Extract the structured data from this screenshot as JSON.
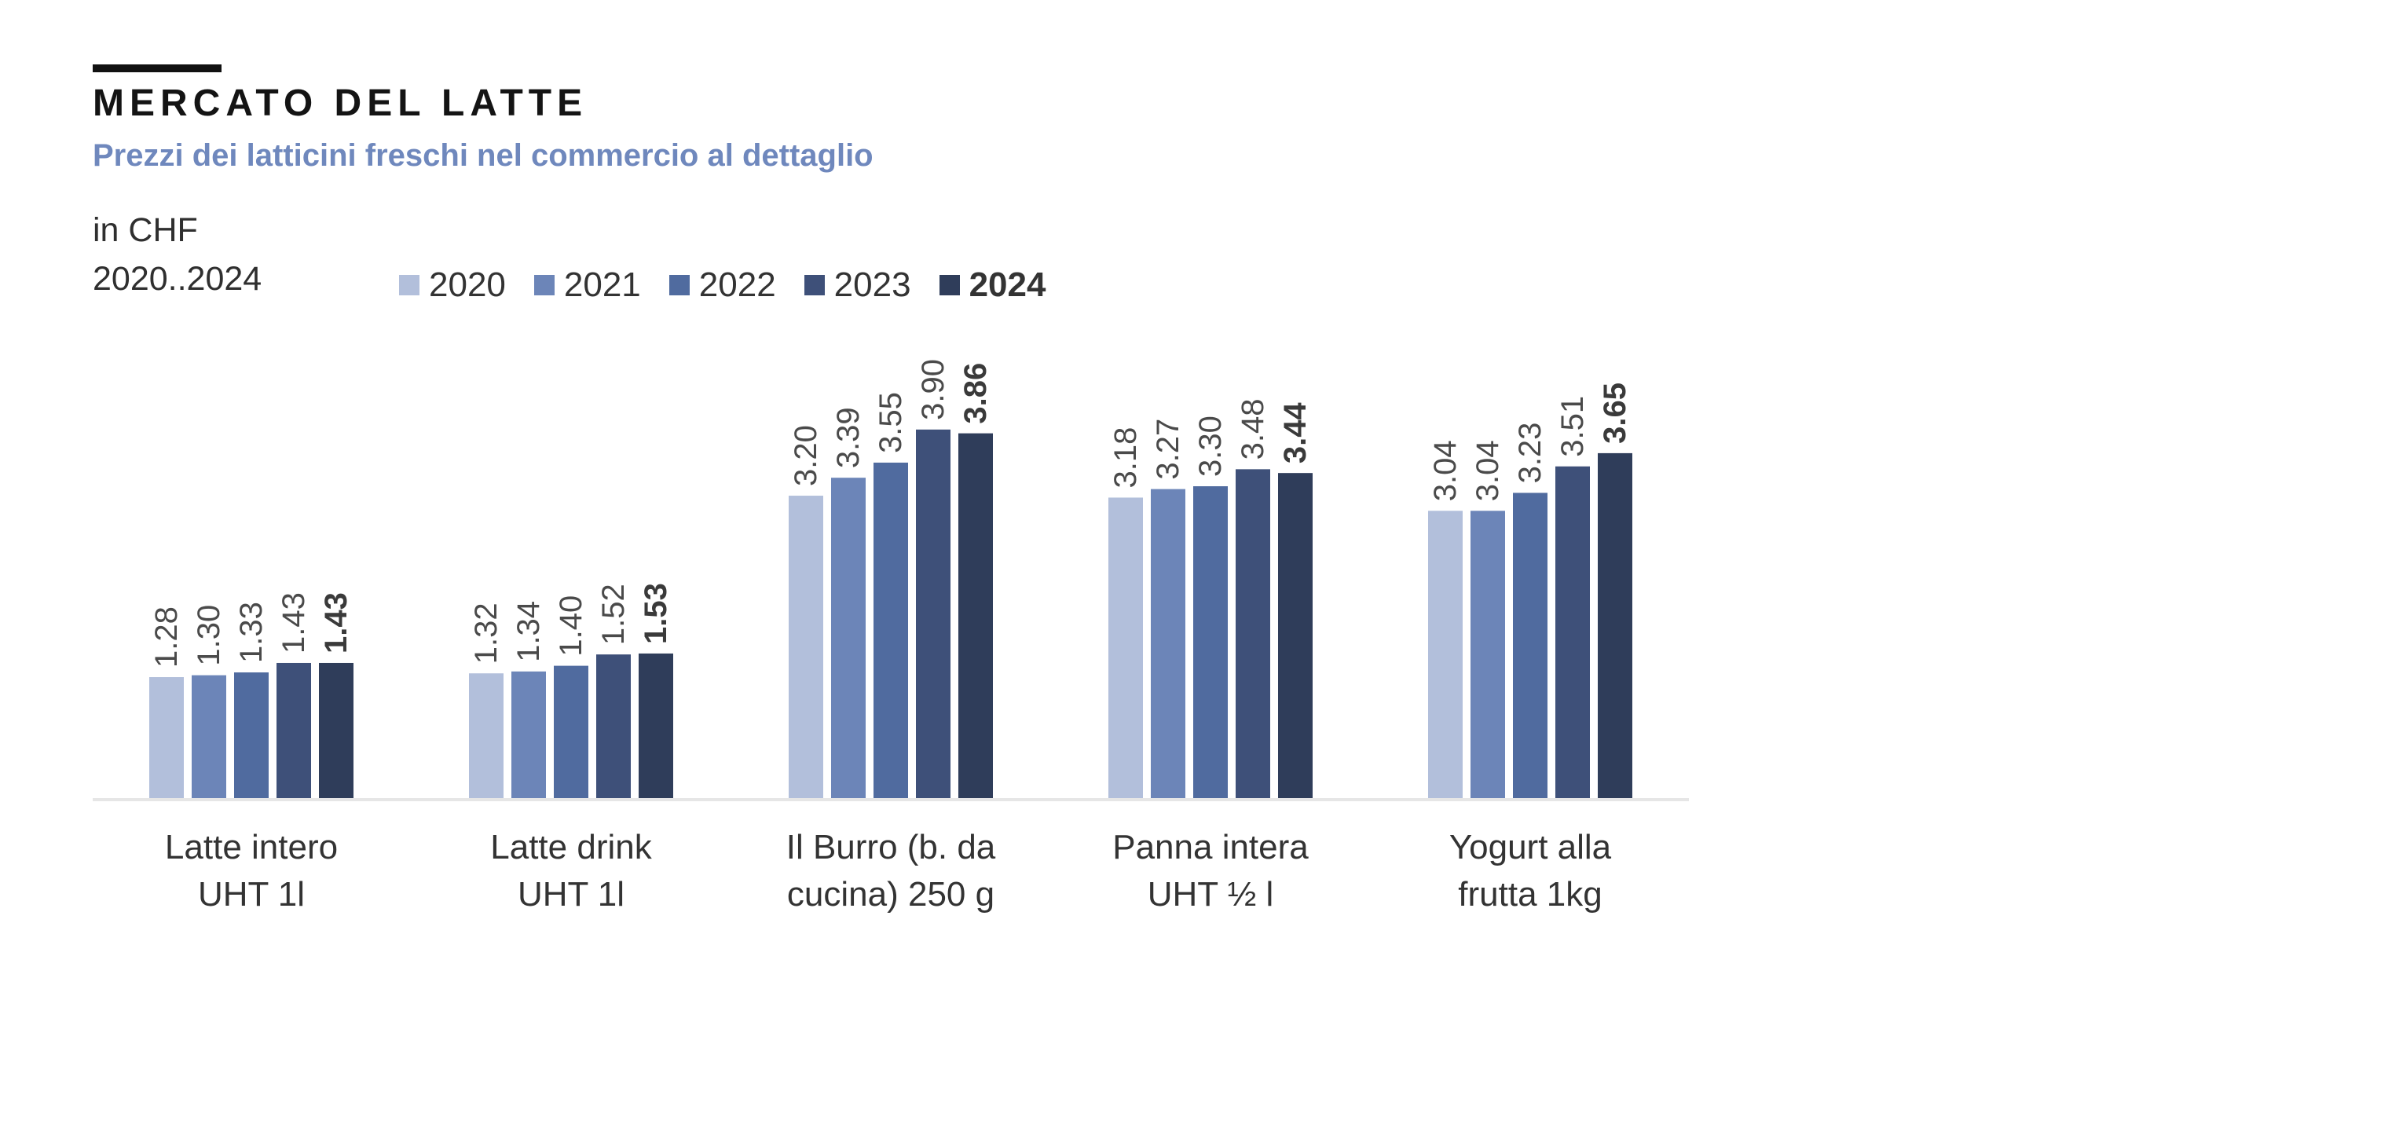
{
  "header": {
    "title": "MERCATO DEL LATTE",
    "subtitle": "Prezzi dei latticini freschi nel commercio al dettaglio",
    "unit": "in CHF",
    "period": "2020..2024"
  },
  "chart_data": {
    "type": "bar",
    "title": "MERCATO DEL LATTE",
    "subtitle": "Prezzi dei latticini freschi nel commercio al dettaglio",
    "ylabel": "in CHF",
    "xlabel": "",
    "ylim": [
      0,
      4.2
    ],
    "grid": false,
    "legend_position": "top",
    "categories": [
      [
        "Latte intero",
        "UHT 1l"
      ],
      [
        "Latte drink",
        "UHT 1l"
      ],
      [
        "Il Burro (b. da",
        "cucina) 250 g"
      ],
      [
        "Panna intera",
        "UHT ½ l"
      ],
      [
        "Yogurt alla",
        "frutta 1kg"
      ]
    ],
    "series": [
      {
        "name": "2020",
        "color": "#b2bfdb",
        "values": [
          1.28,
          1.32,
          3.2,
          3.18,
          3.04
        ],
        "labels": [
          "1.28",
          "1.32",
          "3.20",
          "3.18",
          "3.04"
        ]
      },
      {
        "name": "2021",
        "color": "#6c85b8",
        "values": [
          1.3,
          1.34,
          3.39,
          3.27,
          3.04
        ],
        "labels": [
          "1.30",
          "1.34",
          "3.39",
          "3.27",
          "3.04"
        ]
      },
      {
        "name": "2022",
        "color": "#506b9f",
        "values": [
          1.33,
          1.4,
          3.55,
          3.3,
          3.23
        ],
        "labels": [
          "1.33",
          "1.40",
          "3.55",
          "3.30",
          "3.23"
        ]
      },
      {
        "name": "2023",
        "color": "#3e5079",
        "values": [
          1.43,
          1.52,
          3.9,
          3.48,
          3.51
        ],
        "labels": [
          "1.43",
          "1.52",
          "3.90",
          "3.48",
          "3.51"
        ]
      },
      {
        "name": "2024",
        "color": "#2f3d5a",
        "values": [
          1.43,
          1.53,
          3.86,
          3.44,
          3.65
        ],
        "labels": [
          "1.43",
          "1.53",
          "3.86",
          "3.44",
          "3.65"
        ],
        "emphasis": true
      }
    ]
  }
}
